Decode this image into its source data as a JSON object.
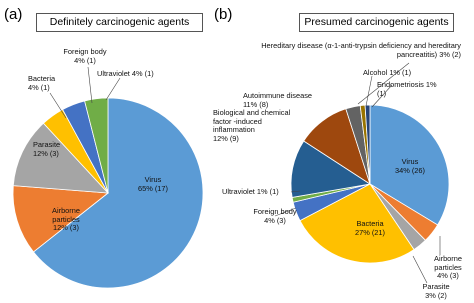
{
  "chart_data": [
    {
      "type": "pie",
      "panel": "(a)",
      "title": "Definitely carcinogenic agents",
      "categories": [
        "Virus",
        "Airborne particles",
        "Parasite",
        "Bacteria",
        "Foreign body",
        "Ultraviolet"
      ],
      "values": [
        65,
        12,
        12,
        4,
        4,
        4
      ],
      "value_labels": [
        "65% (17)",
        "12% (3)",
        "12% (3)",
        "4% (1)",
        "4% (1)",
        "4% (1)"
      ],
      "colors": [
        "#5b9bd5",
        "#ed7d31",
        "#a5a5a5",
        "#ffc000",
        "#4472c4",
        "#70ad47"
      ]
    },
    {
      "type": "pie",
      "panel": "(b)",
      "title": "Presumed carcinogenic agents",
      "categories": [
        "Virus",
        "Airborne particles",
        "Parasite",
        "Bacteria",
        "Foreign body",
        "Ultraviolet",
        "Biological and chemical factor -induced inflammation",
        "Autoimmune disease",
        "Hereditary disease (α-1-anti-trypsin deficiency and hereditary pancreatitis)",
        "Alcohol",
        "Endometriosis"
      ],
      "values": [
        34,
        4,
        3,
        27,
        4,
        1,
        12,
        11,
        3,
        1,
        1
      ],
      "value_labels": [
        "34% (26)",
        "4% (3)",
        "3% (2)",
        "27% (21)",
        "4% (3)",
        "1% (1)",
        "12% (9)",
        "11% (8)",
        "3% (2)",
        "1% (1)",
        "1% (1)"
      ],
      "colors": [
        "#5b9bd5",
        "#ed7d31",
        "#a5a5a5",
        "#ffc000",
        "#4472c4",
        "#70ad47",
        "#255e91",
        "#9e480e",
        "#636363",
        "#997300",
        "#264478"
      ]
    }
  ]
}
